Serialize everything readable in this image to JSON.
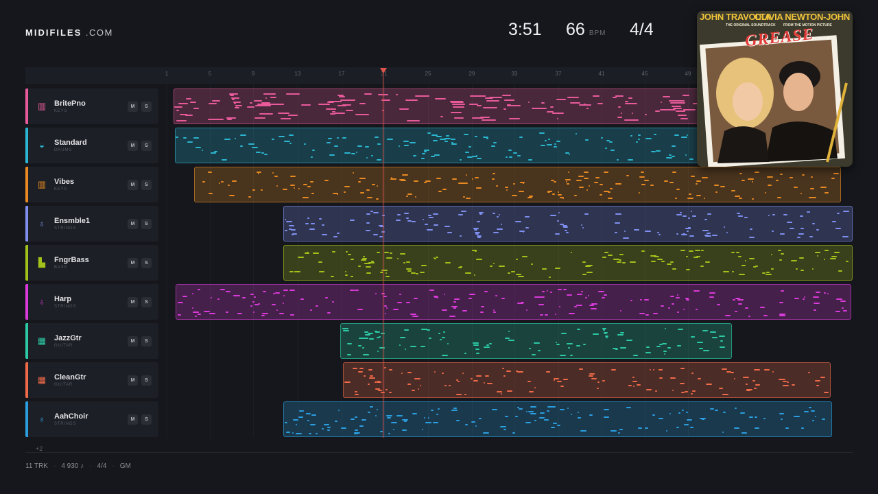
{
  "brand": {
    "name": "MIDIFILES",
    "suffix": ".COM"
  },
  "transport": {
    "duration": "3:51",
    "bpm": "66",
    "bpm_unit": "BPM",
    "time_signature": "4/4"
  },
  "ruler": {
    "ticks": [
      "1",
      "5",
      "9",
      "13",
      "17",
      "21",
      "25",
      "29",
      "33",
      "37",
      "41",
      "45",
      "49"
    ]
  },
  "tracks": [
    {
      "name": "BritePno",
      "category": "KEYS",
      "color": "#e85a9a",
      "icon": "piano-icon",
      "glyph": "▥",
      "mute": "M",
      "solo": "S"
    },
    {
      "name": "Standard",
      "category": "DRUMS",
      "color": "#2bb5d0",
      "icon": "drum-icon",
      "glyph": "◒",
      "mute": "M",
      "solo": "S"
    },
    {
      "name": "Vibes",
      "category": "KEYS",
      "color": "#e88a22",
      "icon": "piano-icon",
      "glyph": "▥",
      "mute": "M",
      "solo": "S"
    },
    {
      "name": "Ensmble1",
      "category": "STRINGS",
      "color": "#7f8ff0",
      "icon": "violin-icon",
      "glyph": "♁",
      "mute": "M",
      "solo": "S"
    },
    {
      "name": "FngrBass",
      "category": "BASS",
      "color": "#a2c11a",
      "icon": "bass-icon",
      "glyph": "▙",
      "mute": "M",
      "solo": "S"
    },
    {
      "name": "Harp",
      "category": "STRINGS",
      "color": "#d93ad9",
      "icon": "violin-icon",
      "glyph": "♁",
      "mute": "M",
      "solo": "S"
    },
    {
      "name": "JazzGtr",
      "category": "GUITAR",
      "color": "#2dc9a5",
      "icon": "guitar-icon",
      "glyph": "▦",
      "mute": "M",
      "solo": "S"
    },
    {
      "name": "CleanGtr",
      "category": "GUITAR",
      "color": "#ee6a48",
      "icon": "guitar-icon",
      "glyph": "▦",
      "mute": "M",
      "solo": "S"
    },
    {
      "name": "AahChoir",
      "category": "STRINGS",
      "color": "#2b9ee0",
      "icon": "violin-icon",
      "glyph": "♁",
      "mute": "M",
      "solo": "S"
    }
  ],
  "more_tracks": "+2",
  "footer": {
    "tracks": "11 TRK",
    "notes": "4 930 ♪",
    "signature": "4/4",
    "standard": "GM"
  },
  "album": {
    "artist_left": "JOHN TRAVOLTA",
    "artist_right": "OLIVIA NEWTON-JOHN",
    "subtitle_left": "THE ORIGINAL SOUNDTRACK",
    "subtitle_right": "FROM THE MOTION PICTURE",
    "title": "GREASE"
  }
}
